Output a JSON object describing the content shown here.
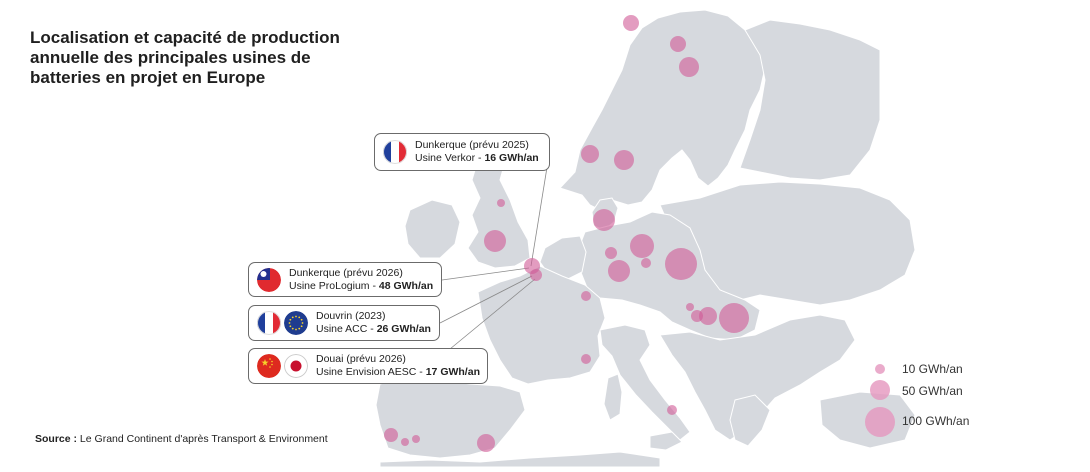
{
  "title": {
    "line1": "Localisation et capacité de production",
    "line2": "annuelle des principales usines de",
    "line3": "batteries en projet en Europe"
  },
  "source": {
    "label": "Source :",
    "text": " Le Grand Continent d'après Transport & Environment"
  },
  "callouts": [
    {
      "flags": [
        "france-flag"
      ],
      "line1": "Dunkerque (prévu 2025)",
      "line2_prefix": "Usine Verkor - ",
      "line2_value": "16 GWh/an"
    },
    {
      "flags": [
        "taiwan-flag"
      ],
      "line1": "Dunkerque (prévu 2026)",
      "line2_prefix": "Usine ProLogium - ",
      "line2_value": "48 GWh/an"
    },
    {
      "flags": [
        "france-flag",
        "eu-flag"
      ],
      "line1": "Douvrin (2023)",
      "line2_prefix": "Usine ACC - ",
      "line2_value": "26 GWh/an"
    },
    {
      "flags": [
        "china-flag",
        "japan-flag"
      ],
      "line1": "Douai (prévu 2026)",
      "line2_prefix": "Usine Envision AESC - ",
      "line2_value": "17 GWh/an"
    }
  ],
  "legend": [
    {
      "label": "10 GWh/an",
      "value": 10
    },
    {
      "label": "50 GWh/an",
      "value": 50
    },
    {
      "label": "100 GWh/an",
      "value": 100
    }
  ],
  "colors": {
    "land": "#d6d9de",
    "land_border": "#ffffff",
    "sea": "#ffffff",
    "bubble": "#d05a96",
    "bubble_alpha": 0.6,
    "bubble_legend": "#e596be"
  }
}
